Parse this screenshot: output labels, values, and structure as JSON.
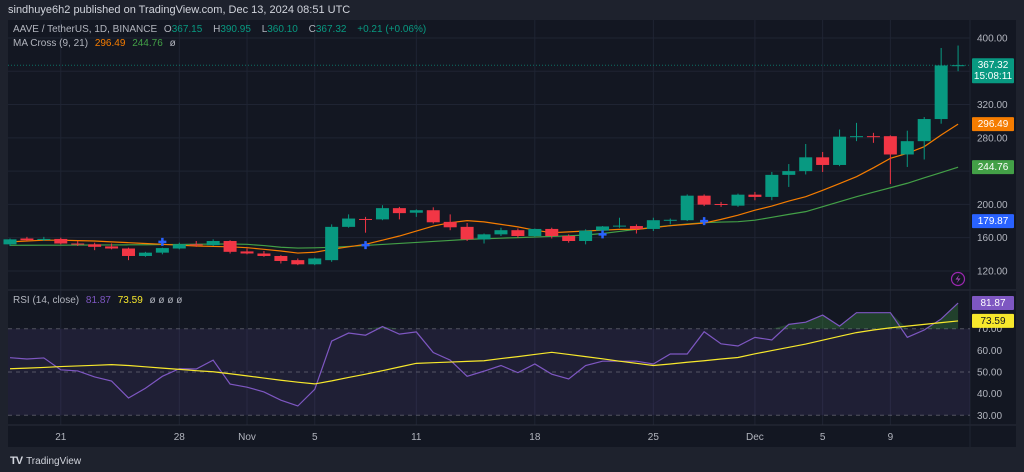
{
  "header": {
    "publisher_line": "sindhuye6h2 published on TradingView.com, Dec 13, 2024 08:51 UTC"
  },
  "legend": {
    "symbol": "AAVE / TetherUS, 1D, BINANCE",
    "o_label": "O",
    "o": "367.15",
    "h_label": "H",
    "h": "390.95",
    "l_label": "L",
    "l": "360.10",
    "c_label": "C",
    "c": "367.32",
    "change": "+0.21 (+0.06%)",
    "ma_name": "MA Cross (9, 21)",
    "ma_fast": "296.49",
    "ma_slow": "244.76",
    "ma_extra": "ø",
    "rsi_name": "RSI (14, close)",
    "rsi_value": "81.87",
    "rsi_ma": "73.59",
    "rsi_extra": "ø ø ø ø"
  },
  "footer": {
    "logo": "TradingView"
  },
  "colors": {
    "up": "#089981",
    "down": "#f23645",
    "ma_fast": "#f57c00",
    "ma_slow": "#43a047",
    "cross": "#2962ff",
    "rsi": "#7e57c2",
    "rsi_ma": "#f7e82c",
    "background": "#131722"
  },
  "chart_data": {
    "type": "candlestick",
    "title": "AAVE / TetherUS, 1D, BINANCE",
    "price_ylim": [
      100,
      410
    ],
    "price_ticks": [
      120,
      160,
      200,
      280,
      320,
      400
    ],
    "grid": true,
    "dates": [
      "Oct 18",
      "Oct 19",
      "Oct 20",
      "Oct 21",
      "Oct 22",
      "Oct 23",
      "Oct 24",
      "Oct 25",
      "Oct 26",
      "Oct 27",
      "Oct 28",
      "Oct 29",
      "Oct 30",
      "Oct 31",
      "Nov 1",
      "Nov 2",
      "Nov 3",
      "Nov 4",
      "Nov 5",
      "Nov 6",
      "Nov 7",
      "Nov 8",
      "Nov 9",
      "Nov 10",
      "Nov 11",
      "Nov 12",
      "Nov 13",
      "Nov 14",
      "Nov 15",
      "Nov 16",
      "Nov 17",
      "Nov 18",
      "Nov 19",
      "Nov 20",
      "Nov 21",
      "Nov 22",
      "Nov 23",
      "Nov 24",
      "Nov 25",
      "Nov 26",
      "Nov 27",
      "Nov 28",
      "Nov 29",
      "Nov 30",
      "Dec 1",
      "Dec 2",
      "Dec 3",
      "Dec 4",
      "Dec 5",
      "Dec 6",
      "Dec 7",
      "Dec 8",
      "Dec 9",
      "Dec 10",
      "Dec 11",
      "Dec 12",
      "Dec 13"
    ],
    "ohlc": [
      [
        152,
        159,
        150,
        158
      ],
      [
        159,
        161,
        156,
        157
      ],
      [
        157.5,
        161,
        156,
        158.5
      ],
      [
        158.5,
        160,
        152,
        153
      ],
      [
        153,
        156,
        150,
        152
      ],
      [
        152,
        154,
        145,
        149
      ],
      [
        149.5,
        153,
        146,
        147
      ],
      [
        147,
        148,
        133,
        138
      ],
      [
        138,
        143,
        137,
        142
      ],
      [
        142,
        148,
        140,
        147.5
      ],
      [
        147,
        154,
        146,
        152
      ],
      [
        152,
        156,
        149,
        151.5
      ],
      [
        151,
        158,
        150,
        156
      ],
      [
        156,
        157,
        141,
        143
      ],
      [
        143.5,
        147,
        140,
        141
      ],
      [
        141,
        144,
        137,
        138
      ],
      [
        138,
        139,
        129,
        132
      ],
      [
        133,
        135,
        127,
        128
      ],
      [
        128,
        136,
        127,
        135
      ],
      [
        133,
        176,
        131,
        173
      ],
      [
        173,
        188,
        172,
        183
      ],
      [
        182.5,
        185,
        166,
        182
      ],
      [
        182,
        199,
        181,
        195.5
      ],
      [
        195.5,
        197,
        182,
        189.5
      ],
      [
        190,
        194,
        185,
        193
      ],
      [
        193,
        196.5,
        177,
        178.5
      ],
      [
        179,
        188,
        169,
        172.5
      ],
      [
        173,
        177.6,
        156,
        158
      ],
      [
        158,
        165,
        153,
        164
      ],
      [
        164,
        172,
        162,
        169
      ],
      [
        169,
        171,
        160,
        162
      ],
      [
        162,
        171,
        161,
        170.5
      ],
      [
        170.5,
        172,
        159,
        162
      ],
      [
        162,
        164,
        154,
        156
      ],
      [
        156,
        170,
        152,
        168.5
      ],
      [
        168.5,
        174,
        166,
        173.5
      ],
      [
        174,
        184,
        172,
        174.5
      ],
      [
        174,
        176,
        165,
        170.5
      ],
      [
        170.5,
        184,
        168,
        181
      ],
      [
        181,
        183,
        176,
        181.5
      ],
      [
        181,
        212,
        180,
        210.5
      ],
      [
        210.5,
        212,
        198,
        199.7
      ],
      [
        200.5,
        203,
        197,
        199.5
      ],
      [
        198.5,
        213,
        197,
        211.7
      ],
      [
        211.7,
        215,
        205,
        209
      ],
      [
        209,
        239,
        205,
        235.5
      ],
      [
        235.5,
        248.5,
        221,
        240
      ],
      [
        240,
        272.6,
        236,
        256.6
      ],
      [
        256.6,
        263,
        239,
        247.4
      ],
      [
        247.4,
        290,
        246,
        281.4
      ],
      [
        281.4,
        298,
        276,
        282
      ],
      [
        282,
        286,
        274,
        281.4
      ],
      [
        282,
        283,
        224.5,
        260
      ],
      [
        260,
        288.6,
        245,
        276
      ],
      [
        276,
        305,
        254,
        302.6
      ],
      [
        302.6,
        388,
        297,
        367
      ],
      [
        367.15,
        390.95,
        360.1,
        367.32
      ]
    ],
    "ma_fast": [
      155,
      156,
      157,
      157,
      156.5,
      156,
      155,
      154,
      153,
      152,
      151,
      150,
      149.5,
      149,
      148,
      146,
      144,
      141.5,
      142.5,
      146,
      149,
      152,
      157,
      162,
      168,
      174,
      178,
      180.5,
      179,
      176,
      173,
      169,
      166,
      167,
      168,
      169,
      170,
      170,
      172,
      174.4,
      176,
      177.6,
      182,
      187,
      193,
      198,
      204,
      209.3,
      217,
      225,
      233.3,
      244,
      255.4,
      261.4,
      269.4,
      283.4,
      296.49
    ],
    "ma_slow": [
      150.8,
      150.9,
      151,
      151,
      151.1,
      151.2,
      151.3,
      151.4,
      151.5,
      151.7,
      151.9,
      152.1,
      152.3,
      152.4,
      152,
      150.5,
      148.5,
      147.5,
      147.8,
      148.4,
      149.5,
      150.7,
      151.9,
      153.1,
      154.3,
      155.5,
      156.7,
      158,
      158.7,
      159.4,
      160.1,
      160.8,
      161.5,
      162.2,
      163.2,
      165,
      167.5,
      170,
      172.5,
      174.5,
      176.5,
      178,
      178.8,
      179.2,
      181,
      184.5,
      188,
      191.3,
      197.3,
      203.3,
      209.3,
      214.7,
      220,
      225.4,
      231.9,
      238.3,
      244.76
    ],
    "cross_points": [
      {
        "date": "Oct 27",
        "price": 155
      },
      {
        "date": "Nov 8",
        "price": 151
      },
      {
        "date": "Nov 22",
        "price": 164
      },
      {
        "date": "Nov 28",
        "price": 179.87
      }
    ],
    "last_price": "367.32",
    "countdown": "15:08:11",
    "cross_price_label": "179.87",
    "rsi_ylim": [
      25,
      90
    ],
    "rsi_ticks": [
      30,
      40,
      50,
      60,
      70
    ],
    "rsi_bands": [
      30,
      50,
      70
    ],
    "rsi": [
      56.6,
      56,
      56.5,
      51,
      50.5,
      47.7,
      45.8,
      38,
      42.5,
      48,
      51.5,
      51.4,
      55.5,
      44.4,
      43,
      40.8,
      37,
      34.3,
      42,
      64.3,
      68,
      67,
      71,
      67.5,
      68.5,
      59,
      55.5,
      48,
      50.4,
      53,
      49.7,
      53.7,
      49,
      46.8,
      53,
      55,
      55,
      55,
      53.7,
      58.3,
      58.3,
      68.6,
      63,
      62,
      66,
      64.8,
      72,
      73,
      76.3,
      71.2,
      77.4,
      77.4,
      77.4,
      66,
      69.4,
      74.5,
      81.87
    ],
    "rsi_ma": [
      51.5,
      51.8,
      52.1,
      52.5,
      52.8,
      53.1,
      53.4,
      53,
      52.4,
      51.8,
      51.2,
      50.6,
      50.1,
      49.2,
      48.2,
      47.2,
      46.2,
      45.3,
      44.5,
      45.9,
      47.5,
      49,
      50.6,
      52.3,
      54,
      54.3,
      54.6,
      54.9,
      55.2,
      56.2,
      57.1,
      58.1,
      59.1,
      58.1,
      57.1,
      56.1,
      55,
      54,
      53,
      53.7,
      54.5,
      55.2,
      56,
      56.7,
      58.4,
      59.9,
      61.4,
      62.9,
      64.7,
      66.5,
      68.2,
      69.4,
      70.4,
      71.2,
      72,
      72.8,
      73.59
    ],
    "x_ticks": [
      {
        "label": "21",
        "date": "Oct 21"
      },
      {
        "label": "28",
        "date": "Oct 28"
      },
      {
        "label": "Nov",
        "date": "Nov 1"
      },
      {
        "label": "5",
        "date": "Nov 5"
      },
      {
        "label": "11",
        "date": "Nov 11"
      },
      {
        "label": "18",
        "date": "Nov 18"
      },
      {
        "label": "25",
        "date": "Nov 25"
      },
      {
        "label": "Dec",
        "date": "Dec 1"
      },
      {
        "label": "5",
        "date": "Dec 5"
      },
      {
        "label": "9",
        "date": "Dec 9"
      }
    ],
    "icons": {
      "alert": "lightning-bolt-icon"
    }
  }
}
